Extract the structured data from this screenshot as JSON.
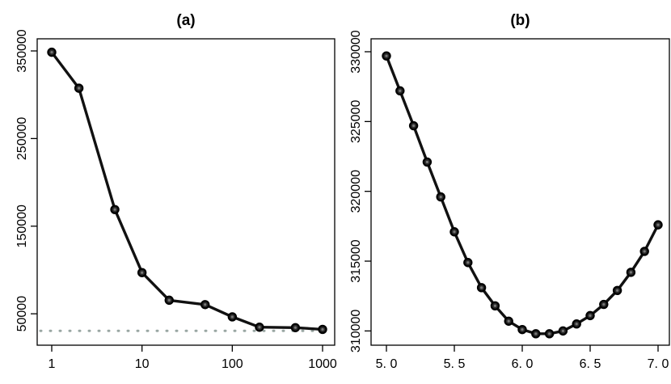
{
  "chart_data": [
    {
      "panel": "a",
      "type": "line",
      "title": "(a)",
      "xlabel": "",
      "ylabel": "",
      "x_scale": "log",
      "xlim": [
        1,
        1000
      ],
      "ylim": [
        28000,
        350000
      ],
      "x": [
        1,
        2,
        5,
        10,
        20,
        50,
        100,
        200,
        500,
        1000
      ],
      "values": [
        348500,
        307500,
        169000,
        97000,
        65500,
        60500,
        46500,
        34700,
        34200,
        32200
      ],
      "x_ticks": [
        1,
        10,
        100,
        1000
      ],
      "x_tick_labels": [
        "1",
        "10",
        "100",
        "1000"
      ],
      "y_ticks": [
        50000,
        150000,
        250000,
        350000
      ],
      "y_tick_labels": [
        "50000",
        "150000",
        "250000",
        "350000"
      ],
      "reference_line": {
        "y": 30500,
        "style": "dotted",
        "color": "#9aa7a3"
      }
    },
    {
      "panel": "b",
      "type": "line",
      "title": "(b)",
      "xlabel": "",
      "ylabel": "",
      "x_scale": "linear",
      "xlim": [
        5.0,
        7.0
      ],
      "ylim": [
        309500,
        330000
      ],
      "x": [
        5.0,
        5.1,
        5.2,
        5.3,
        5.4,
        5.5,
        5.6,
        5.7,
        5.8,
        5.9,
        6.0,
        6.1,
        6.2,
        6.3,
        6.4,
        6.5,
        6.6,
        6.7,
        6.8,
        6.9,
        7.0
      ],
      "values": [
        329700,
        327200,
        324700,
        322100,
        319600,
        317100,
        314900,
        313100,
        311800,
        310700,
        310100,
        309800,
        309800,
        310000,
        310500,
        311100,
        311900,
        312900,
        314200,
        315700,
        317600
      ],
      "x_ticks": [
        5.0,
        5.5,
        6.0,
        6.5,
        7.0
      ],
      "x_tick_labels": [
        "5. 0",
        "5. 5",
        "6. 0",
        "6. 5",
        "7. 0"
      ],
      "y_ticks": [
        310000,
        315000,
        320000,
        325000,
        330000
      ],
      "y_tick_labels": [
        "310000",
        "315000",
        "320000",
        "325000",
        "330000"
      ]
    }
  ]
}
